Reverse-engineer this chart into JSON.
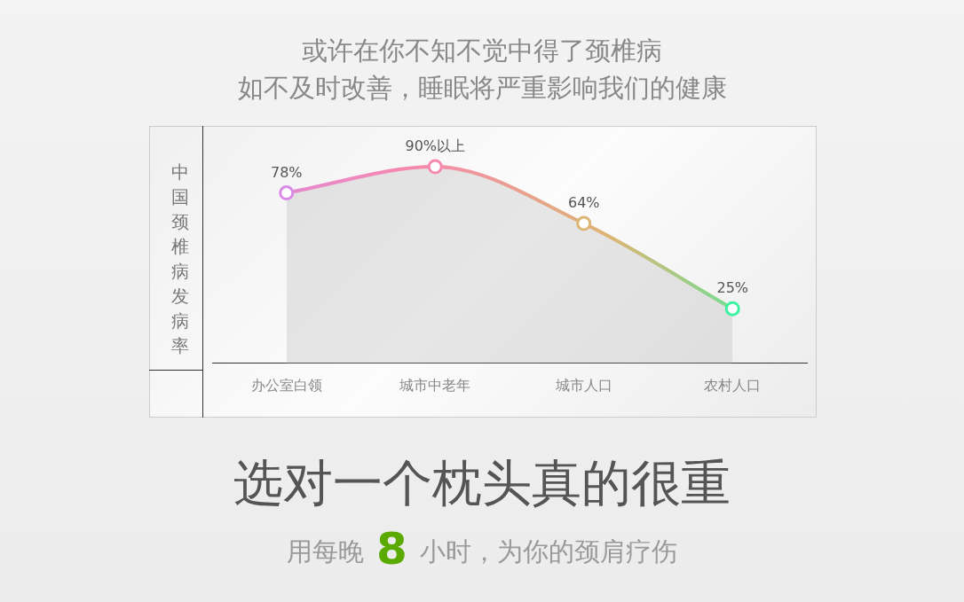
{
  "chart_data": {
    "type": "area",
    "title": "或许在你不知不觉中得了颈椎病",
    "subtitle": "如不及时改善，睡眠将严重影响我们的健康",
    "ylabel": "中国颈椎病发病率",
    "categories": [
      "办公室白领",
      "城市中老年",
      "城市人口",
      "农村人口"
    ],
    "values": [
      78,
      90,
      64,
      25
    ],
    "value_labels": [
      "78%",
      "90%以上",
      "64%",
      "25%"
    ],
    "colors": [
      "#d98ae6",
      "#f788ae",
      "#ddb574",
      "#3ef2a2"
    ],
    "marker": "circle",
    "annotations": [
      "选对一个枕头真的很重",
      "用每晚",
      "8",
      "小时，为你的颈肩疗伤"
    ]
  }
}
